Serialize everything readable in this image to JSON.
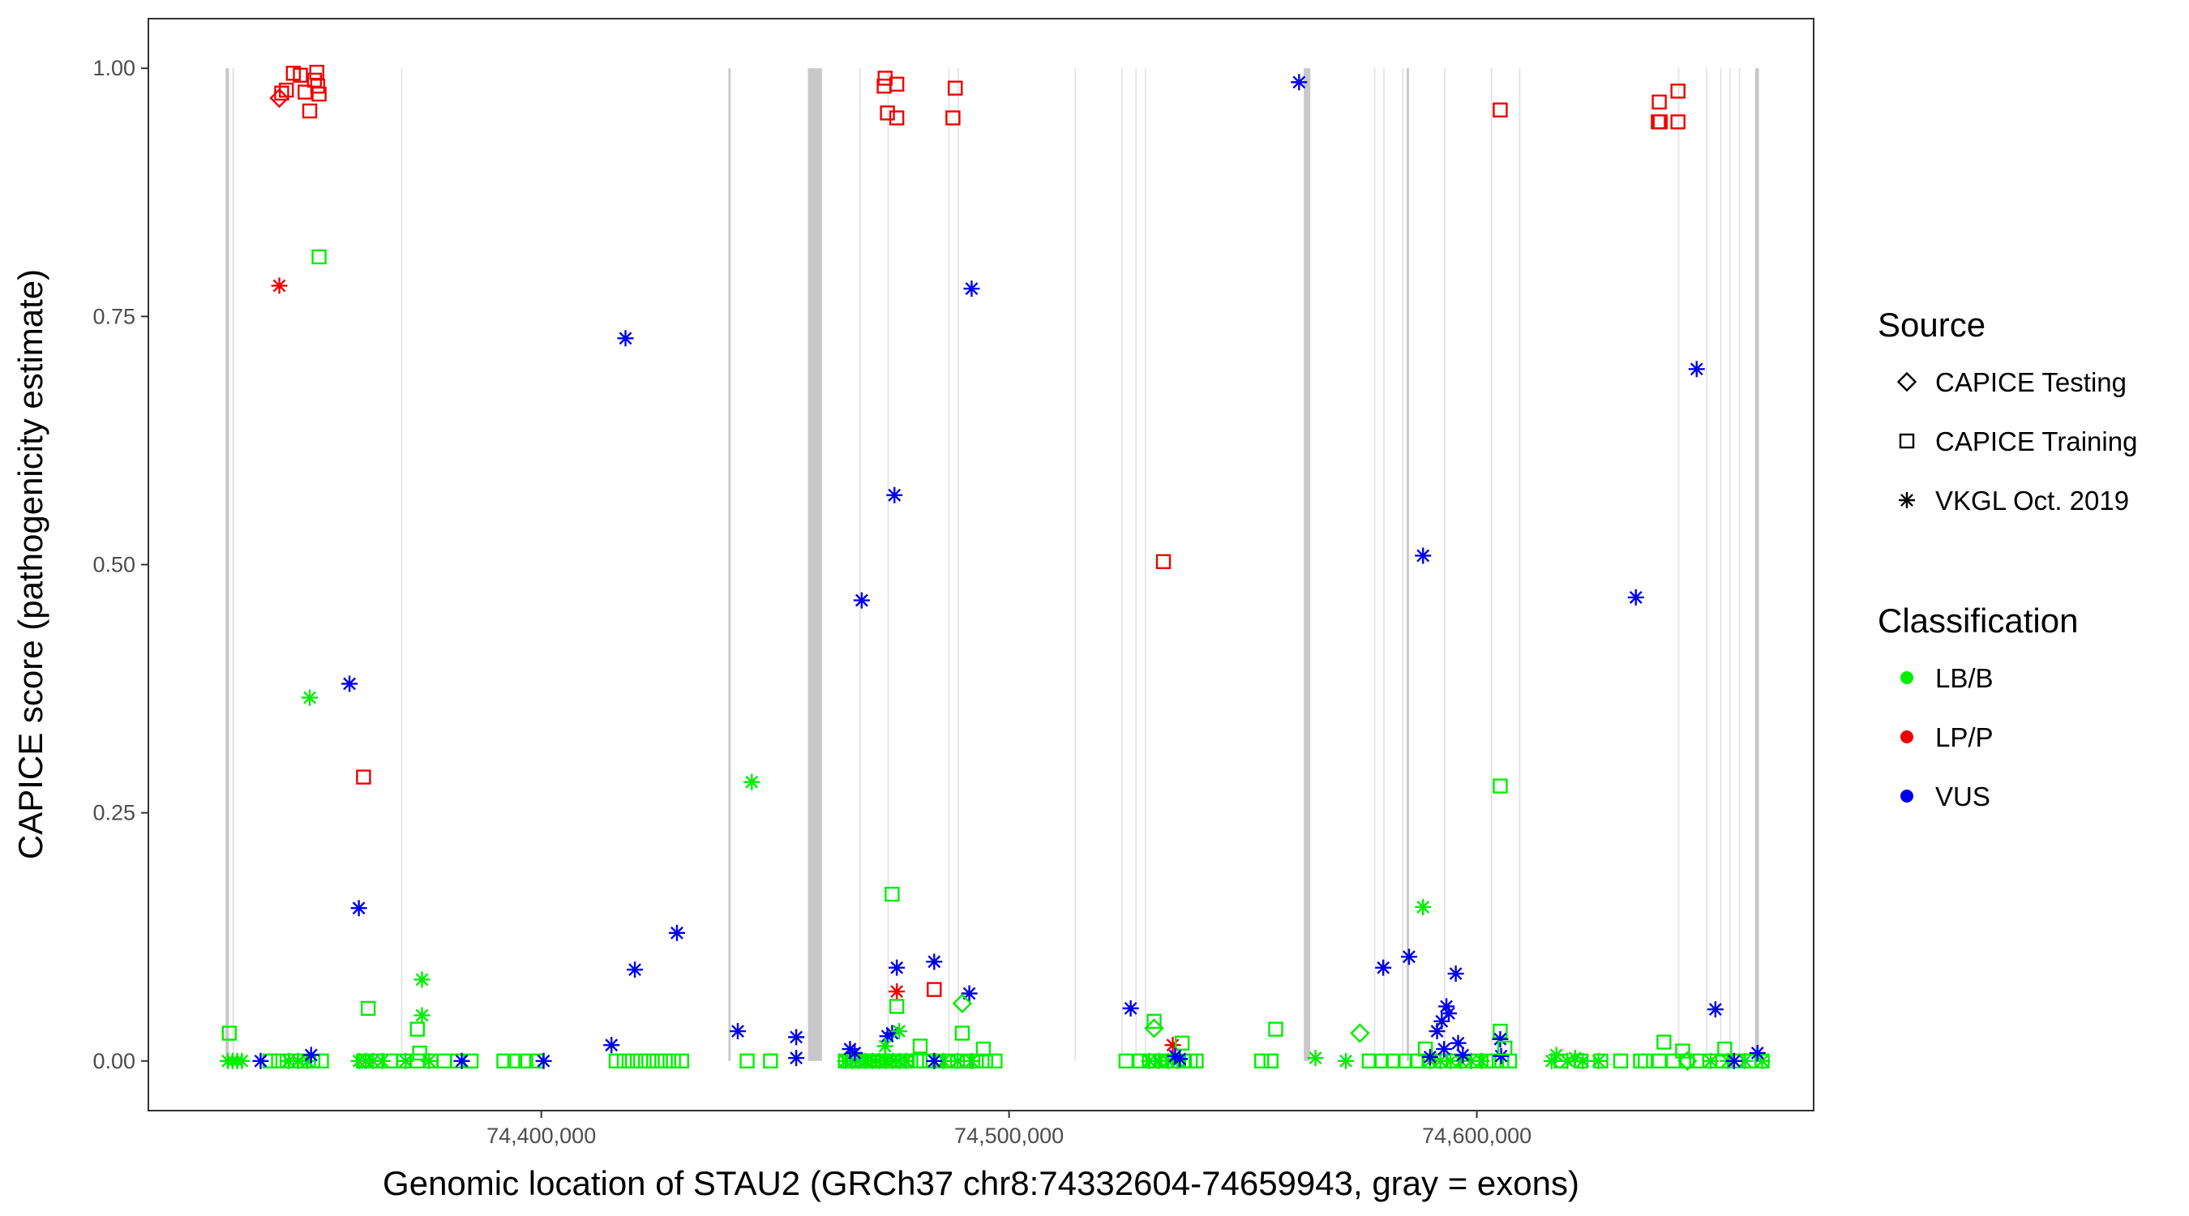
{
  "chart_data": {
    "type": "scatter",
    "xlabel": "Genomic location of STAU2 (GRCh37 chr8:74332604-74659943, gray = exons)",
    "ylabel": "CAPICE score (pathogenicity estimate)",
    "xlim": [
      74316000,
      74672000
    ],
    "ylim": [
      -0.05,
      1.05
    ],
    "x_ticks": [
      74400000,
      74500000,
      74600000
    ],
    "x_tick_labels": [
      "74,400,000",
      "74,500,000",
      "74,600,000"
    ],
    "y_ticks": [
      0,
      0.25,
      0.5,
      0.75,
      1.0
    ],
    "y_tick_labels": [
      "0.00",
      "0.25",
      "0.50",
      "0.75",
      "1.00"
    ],
    "grid": false,
    "legend_position": "right",
    "source_legend": {
      "title": "Source",
      "items": [
        {
          "label": "CAPICE Testing",
          "shape": "diamond"
        },
        {
          "label": "CAPICE Training",
          "shape": "square"
        },
        {
          "label": "VKGL Oct. 2019",
          "shape": "asterisk"
        }
      ]
    },
    "class_legend": {
      "title": "Classification",
      "items": [
        {
          "label": "LB/B",
          "color": "#00ee00"
        },
        {
          "label": "LP/P",
          "color": "#ee0000"
        },
        {
          "label": "VUS",
          "color": "#0000ee"
        }
      ]
    },
    "exons": [
      {
        "start": 74332500,
        "end": 74333200,
        "shade": "#c8c8c8"
      },
      {
        "start": 74334000,
        "end": 74334300,
        "shade": "#dddddd"
      },
      {
        "start": 74370000,
        "end": 74370300,
        "shade": "#e2e2e2"
      },
      {
        "start": 74440000,
        "end": 74440500,
        "shade": "#c8c8c8"
      },
      {
        "start": 74457000,
        "end": 74460000,
        "shade": "#c8c8c8"
      },
      {
        "start": 74468000,
        "end": 74468300,
        "shade": "#e2e2e2"
      },
      {
        "start": 74474000,
        "end": 74474300,
        "shade": "#e2e2e2"
      },
      {
        "start": 74487000,
        "end": 74487300,
        "shade": "#e2e2e2"
      },
      {
        "start": 74489000,
        "end": 74489300,
        "shade": "#e2e2e2"
      },
      {
        "start": 74514000,
        "end": 74514300,
        "shade": "#e2e2e2"
      },
      {
        "start": 74524000,
        "end": 74524300,
        "shade": "#e2e2e2"
      },
      {
        "start": 74527000,
        "end": 74527300,
        "shade": "#e2e2e2"
      },
      {
        "start": 74529000,
        "end": 74529300,
        "shade": "#e2e2e2"
      },
      {
        "start": 74563000,
        "end": 74564400,
        "shade": "#c8c8c8"
      },
      {
        "start": 74578000,
        "end": 74578300,
        "shade": "#e2e2e2"
      },
      {
        "start": 74580000,
        "end": 74580300,
        "shade": "#e2e2e2"
      },
      {
        "start": 74584000,
        "end": 74584300,
        "shade": "#e2e2e2"
      },
      {
        "start": 74585000,
        "end": 74585500,
        "shade": "#c8c8c8"
      },
      {
        "start": 74593000,
        "end": 74593300,
        "shade": "#e2e2e2"
      },
      {
        "start": 74603000,
        "end": 74603300,
        "shade": "#e2e2e2"
      },
      {
        "start": 74609000,
        "end": 74609300,
        "shade": "#e2e2e2"
      },
      {
        "start": 74643000,
        "end": 74643300,
        "shade": "#e2e2e2"
      },
      {
        "start": 74649000,
        "end": 74649300,
        "shade": "#e2e2e2"
      },
      {
        "start": 74652000,
        "end": 74652300,
        "shade": "#e2e2e2"
      },
      {
        "start": 74654000,
        "end": 74654300,
        "shade": "#e2e2e2"
      },
      {
        "start": 74656000,
        "end": 74656300,
        "shade": "#e2e2e2"
      },
      {
        "start": 74659500,
        "end": 74660300,
        "shade": "#c8c8c8"
      }
    ],
    "points": [
      {
        "x": 74344000,
        "y": 0.97,
        "shape": "diamond",
        "cls": "LP/P"
      },
      {
        "x": 74344500,
        "y": 0.975,
        "shape": "square",
        "cls": "LP/P"
      },
      {
        "x": 74345500,
        "y": 0.978,
        "shape": "square",
        "cls": "LP/P"
      },
      {
        "x": 74347000,
        "y": 0.995,
        "shape": "square",
        "cls": "LP/P"
      },
      {
        "x": 74348500,
        "y": 0.993,
        "shape": "square",
        "cls": "LP/P"
      },
      {
        "x": 74349500,
        "y": 0.976,
        "shape": "square",
        "cls": "LP/P"
      },
      {
        "x": 74350500,
        "y": 0.957,
        "shape": "square",
        "cls": "LP/P"
      },
      {
        "x": 74351500,
        "y": 0.988,
        "shape": "square",
        "cls": "LP/P"
      },
      {
        "x": 74352000,
        "y": 0.996,
        "shape": "square",
        "cls": "LP/P"
      },
      {
        "x": 74352200,
        "y": 0.982,
        "shape": "square",
        "cls": "LP/P"
      },
      {
        "x": 74352500,
        "y": 0.974,
        "shape": "square",
        "cls": "LP/P"
      },
      {
        "x": 74344000,
        "y": 0.781,
        "shape": "asterisk",
        "cls": "LP/P"
      },
      {
        "x": 74352500,
        "y": 0.81,
        "shape": "square",
        "cls": "LB/B"
      },
      {
        "x": 74350500,
        "y": 0.366,
        "shape": "asterisk",
        "cls": "LB/B"
      },
      {
        "x": 74359000,
        "y": 0.38,
        "shape": "asterisk",
        "cls": "VUS"
      },
      {
        "x": 74362000,
        "y": 0.286,
        "shape": "square",
        "cls": "LP/P"
      },
      {
        "x": 74361000,
        "y": 0.154,
        "shape": "asterisk",
        "cls": "VUS"
      },
      {
        "x": 74363000,
        "y": 0.053,
        "shape": "square",
        "cls": "LB/B"
      },
      {
        "x": 74374500,
        "y": 0.082,
        "shape": "asterisk",
        "cls": "LB/B"
      },
      {
        "x": 74374500,
        "y": 0.046,
        "shape": "asterisk",
        "cls": "LB/B"
      },
      {
        "x": 74373500,
        "y": 0.032,
        "shape": "square",
        "cls": "LB/B"
      },
      {
        "x": 74374000,
        "y": 0.008,
        "shape": "square",
        "cls": "LB/B"
      },
      {
        "x": 74418000,
        "y": 0.728,
        "shape": "asterisk",
        "cls": "VUS"
      },
      {
        "x": 74420000,
        "y": 0.092,
        "shape": "asterisk",
        "cls": "VUS"
      },
      {
        "x": 74429000,
        "y": 0.129,
        "shape": "asterisk",
        "cls": "VUS"
      },
      {
        "x": 74415000,
        "y": 0.016,
        "shape": "asterisk",
        "cls": "VUS"
      },
      {
        "x": 74442000,
        "y": 0.03,
        "shape": "asterisk",
        "cls": "VUS"
      },
      {
        "x": 74445000,
        "y": 0.281,
        "shape": "asterisk",
        "cls": "LB/B"
      },
      {
        "x": 74454500,
        "y": 0.024,
        "shape": "asterisk",
        "cls": "VUS"
      },
      {
        "x": 74454500,
        "y": 0.003,
        "shape": "asterisk",
        "cls": "VUS"
      },
      {
        "x": 74333300,
        "y": 0.028,
        "shape": "square",
        "cls": "LB/B"
      },
      {
        "x": 74340000,
        "y": 0.0,
        "shape": "asterisk",
        "cls": "VUS"
      },
      {
        "x": 74350800,
        "y": 0.006,
        "shape": "asterisk",
        "cls": "VUS"
      },
      {
        "x": 74383000,
        "y": 0.0,
        "shape": "asterisk",
        "cls": "VUS"
      },
      {
        "x": 74400500,
        "y": 0.0,
        "shape": "asterisk",
        "cls": "VUS"
      },
      {
        "x": 74468500,
        "y": 0.464,
        "shape": "asterisk",
        "cls": "VUS"
      },
      {
        "x": 74475500,
        "y": 0.57,
        "shape": "asterisk",
        "cls": "VUS"
      },
      {
        "x": 74492000,
        "y": 0.778,
        "shape": "asterisk",
        "cls": "VUS"
      },
      {
        "x": 74473500,
        "y": 0.99,
        "shape": "square",
        "cls": "LP/P"
      },
      {
        "x": 74473300,
        "y": 0.982,
        "shape": "square",
        "cls": "LP/P"
      },
      {
        "x": 74474000,
        "y": 0.955,
        "shape": "square",
        "cls": "LP/P"
      },
      {
        "x": 74476000,
        "y": 0.984,
        "shape": "square",
        "cls": "LP/P"
      },
      {
        "x": 74476000,
        "y": 0.95,
        "shape": "square",
        "cls": "LP/P"
      },
      {
        "x": 74488500,
        "y": 0.98,
        "shape": "square",
        "cls": "LP/P"
      },
      {
        "x": 74488000,
        "y": 0.95,
        "shape": "square",
        "cls": "LP/P"
      },
      {
        "x": 74475000,
        "y": 0.168,
        "shape": "square",
        "cls": "LB/B"
      },
      {
        "x": 74476000,
        "y": 0.094,
        "shape": "asterisk",
        "cls": "VUS"
      },
      {
        "x": 74484000,
        "y": 0.1,
        "shape": "asterisk",
        "cls": "VUS"
      },
      {
        "x": 74476000,
        "y": 0.07,
        "shape": "asterisk",
        "cls": "LP/P"
      },
      {
        "x": 74484000,
        "y": 0.072,
        "shape": "square",
        "cls": "LP/P"
      },
      {
        "x": 74491500,
        "y": 0.068,
        "shape": "asterisk",
        "cls": "VUS"
      },
      {
        "x": 74476000,
        "y": 0.055,
        "shape": "square",
        "cls": "LB/B"
      },
      {
        "x": 74490000,
        "y": 0.058,
        "shape": "diamond",
        "cls": "LB/B"
      },
      {
        "x": 74490000,
        "y": 0.028,
        "shape": "square",
        "cls": "LB/B"
      },
      {
        "x": 74475000,
        "y": 0.028,
        "shape": "asterisk",
        "cls": "VUS"
      },
      {
        "x": 74474000,
        "y": 0.025,
        "shape": "asterisk",
        "cls": "VUS"
      },
      {
        "x": 74476500,
        "y": 0.03,
        "shape": "asterisk",
        "cls": "LB/B"
      },
      {
        "x": 74473500,
        "y": 0.015,
        "shape": "asterisk",
        "cls": "LB/B"
      },
      {
        "x": 74466000,
        "y": 0.012,
        "shape": "asterisk",
        "cls": "VUS"
      },
      {
        "x": 74467000,
        "y": 0.008,
        "shape": "asterisk",
        "cls": "VUS"
      },
      {
        "x": 74481000,
        "y": 0.015,
        "shape": "square",
        "cls": "LB/B"
      },
      {
        "x": 74494500,
        "y": 0.012,
        "shape": "square",
        "cls": "LB/B"
      },
      {
        "x": 74484000,
        "y": 0.0,
        "shape": "asterisk",
        "cls": "VUS"
      },
      {
        "x": 74526000,
        "y": 0.053,
        "shape": "asterisk",
        "cls": "VUS"
      },
      {
        "x": 74531000,
        "y": 0.04,
        "shape": "square",
        "cls": "LB/B"
      },
      {
        "x": 74531000,
        "y": 0.033,
        "shape": "diamond",
        "cls": "LB/B"
      },
      {
        "x": 74533000,
        "y": 0.503,
        "shape": "square",
        "cls": "LP/P"
      },
      {
        "x": 74535000,
        "y": 0.016,
        "shape": "asterisk",
        "cls": "LP/P"
      },
      {
        "x": 74537000,
        "y": 0.018,
        "shape": "square",
        "cls": "LB/B"
      },
      {
        "x": 74535500,
        "y": 0.005,
        "shape": "asterisk",
        "cls": "VUS"
      },
      {
        "x": 74536500,
        "y": 0.002,
        "shape": "asterisk",
        "cls": "VUS"
      },
      {
        "x": 74557000,
        "y": 0.032,
        "shape": "square",
        "cls": "LB/B"
      },
      {
        "x": 74562000,
        "y": 0.986,
        "shape": "asterisk",
        "cls": "VUS"
      },
      {
        "x": 74565500,
        "y": 0.003,
        "shape": "asterisk",
        "cls": "LB/B"
      },
      {
        "x": 74575000,
        "y": 0.028,
        "shape": "diamond",
        "cls": "LB/B"
      },
      {
        "x": 74572000,
        "y": 0.0,
        "shape": "asterisk",
        "cls": "LB/B"
      },
      {
        "x": 74580000,
        "y": 0.094,
        "shape": "asterisk",
        "cls": "VUS"
      },
      {
        "x": 74585500,
        "y": 0.105,
        "shape": "asterisk",
        "cls": "VUS"
      },
      {
        "x": 74588500,
        "y": 0.509,
        "shape": "asterisk",
        "cls": "VUS"
      },
      {
        "x": 74588500,
        "y": 0.155,
        "shape": "asterisk",
        "cls": "LB/B"
      },
      {
        "x": 74595500,
        "y": 0.088,
        "shape": "asterisk",
        "cls": "VUS"
      },
      {
        "x": 74593500,
        "y": 0.055,
        "shape": "asterisk",
        "cls": "VUS"
      },
      {
        "x": 74594000,
        "y": 0.048,
        "shape": "asterisk",
        "cls": "VUS"
      },
      {
        "x": 74592500,
        "y": 0.04,
        "shape": "asterisk",
        "cls": "VUS"
      },
      {
        "x": 74591500,
        "y": 0.03,
        "shape": "asterisk",
        "cls": "VUS"
      },
      {
        "x": 74596000,
        "y": 0.018,
        "shape": "asterisk",
        "cls": "VUS"
      },
      {
        "x": 74593000,
        "y": 0.012,
        "shape": "asterisk",
        "cls": "VUS"
      },
      {
        "x": 74589000,
        "y": 0.012,
        "shape": "square",
        "cls": "LB/B"
      },
      {
        "x": 74590000,
        "y": 0.004,
        "shape": "asterisk",
        "cls": "VUS"
      },
      {
        "x": 74597000,
        "y": 0.006,
        "shape": "asterisk",
        "cls": "VUS"
      },
      {
        "x": 74605000,
        "y": 0.958,
        "shape": "square",
        "cls": "LP/P"
      },
      {
        "x": 74605000,
        "y": 0.277,
        "shape": "square",
        "cls": "LB/B"
      },
      {
        "x": 74605000,
        "y": 0.03,
        "shape": "square",
        "cls": "LB/B"
      },
      {
        "x": 74605000,
        "y": 0.022,
        "shape": "asterisk",
        "cls": "VUS"
      },
      {
        "x": 74605200,
        "y": 0.005,
        "shape": "asterisk",
        "cls": "VUS"
      },
      {
        "x": 74606000,
        "y": 0.013,
        "shape": "square",
        "cls": "LB/B"
      },
      {
        "x": 74617000,
        "y": 0.006,
        "shape": "asterisk",
        "cls": "LB/B"
      },
      {
        "x": 74621000,
        "y": 0.003,
        "shape": "asterisk",
        "cls": "LB/B"
      },
      {
        "x": 74634000,
        "y": 0.467,
        "shape": "asterisk",
        "cls": "VUS"
      },
      {
        "x": 74639000,
        "y": 0.966,
        "shape": "square",
        "cls": "LP/P"
      },
      {
        "x": 74638800,
        "y": 0.946,
        "shape": "square",
        "cls": "LP/P"
      },
      {
        "x": 74639200,
        "y": 0.946,
        "shape": "square",
        "cls": "LP/P"
      },
      {
        "x": 74643000,
        "y": 0.977,
        "shape": "square",
        "cls": "LP/P"
      },
      {
        "x": 74643000,
        "y": 0.946,
        "shape": "square",
        "cls": "LP/P"
      },
      {
        "x": 74647000,
        "y": 0.697,
        "shape": "asterisk",
        "cls": "VUS"
      },
      {
        "x": 74640000,
        "y": 0.019,
        "shape": "square",
        "cls": "LB/B"
      },
      {
        "x": 74644000,
        "y": 0.01,
        "shape": "square",
        "cls": "LB/B"
      },
      {
        "x": 74645000,
        "y": 0.0,
        "shape": "diamond",
        "cls": "LB/B"
      },
      {
        "x": 74651000,
        "y": 0.052,
        "shape": "asterisk",
        "cls": "VUS"
      },
      {
        "x": 74653000,
        "y": 0.012,
        "shape": "square",
        "cls": "LB/B"
      },
      {
        "x": 74655000,
        "y": 0.0,
        "shape": "asterisk",
        "cls": "VUS"
      },
      {
        "x": 74660000,
        "y": 0.008,
        "shape": "asterisk",
        "cls": "VUS"
      }
    ],
    "baseline_groups": [
      {
        "x_start": 74333000,
        "x_end": 74336000,
        "shape": "asterisk",
        "cls": "LB/B",
        "count": 4
      },
      {
        "x_start": 74342000,
        "x_end": 74353000,
        "shape": "square",
        "cls": "LB/B",
        "count": 7
      },
      {
        "x_start": 74346000,
        "x_end": 74350000,
        "shape": "asterisk",
        "cls": "LB/B",
        "count": 3
      },
      {
        "x_start": 74361000,
        "x_end": 74364000,
        "shape": "asterisk",
        "cls": "LB/B",
        "count": 3
      },
      {
        "x_start": 74362000,
        "x_end": 74385000,
        "shape": "square",
        "cls": "LB/B",
        "count": 9
      },
      {
        "x_start": 74366000,
        "x_end": 74376000,
        "shape": "asterisk",
        "cls": "LB/B",
        "count": 3
      },
      {
        "x_start": 74392000,
        "x_end": 74399000,
        "shape": "square",
        "cls": "LB/B",
        "count": 4
      },
      {
        "x_start": 74416000,
        "x_end": 74430000,
        "shape": "square",
        "cls": "LB/B",
        "count": 9
      },
      {
        "x_start": 74444000,
        "x_end": 74449000,
        "shape": "square",
        "cls": "LB/B",
        "count": 2
      },
      {
        "x_start": 74465000,
        "x_end": 74478000,
        "shape": "square",
        "cls": "LB/B",
        "count": 16
      },
      {
        "x_start": 74465000,
        "x_end": 74478000,
        "shape": "asterisk",
        "cls": "LB/B",
        "count": 10
      },
      {
        "x_start": 74479000,
        "x_end": 74497000,
        "shape": "square",
        "cls": "LB/B",
        "count": 10
      },
      {
        "x_start": 74486000,
        "x_end": 74492000,
        "shape": "asterisk",
        "cls": "LB/B",
        "count": 3
      },
      {
        "x_start": 74525000,
        "x_end": 74528000,
        "shape": "square",
        "cls": "LB/B",
        "count": 2
      },
      {
        "x_start": 74530000,
        "x_end": 74540000,
        "shape": "square",
        "cls": "LB/B",
        "count": 9
      },
      {
        "x_start": 74530000,
        "x_end": 74536000,
        "shape": "asterisk",
        "cls": "LB/B",
        "count": 4
      },
      {
        "x_start": 74554000,
        "x_end": 74556000,
        "shape": "square",
        "cls": "LB/B",
        "count": 2
      },
      {
        "x_start": 74577000,
        "x_end": 74600000,
        "shape": "square",
        "cls": "LB/B",
        "count": 10
      },
      {
        "x_start": 74590000,
        "x_end": 74601000,
        "shape": "asterisk",
        "cls": "LB/B",
        "count": 6
      },
      {
        "x_start": 74602000,
        "x_end": 74607000,
        "shape": "square",
        "cls": "LB/B",
        "count": 4
      },
      {
        "x_start": 74616000,
        "x_end": 74626000,
        "shape": "asterisk",
        "cls": "LB/B",
        "count": 4
      },
      {
        "x_start": 74618000,
        "x_end": 74635000,
        "shape": "square",
        "cls": "LB/B",
        "count": 5
      },
      {
        "x_start": 74636000,
        "x_end": 74645000,
        "shape": "square",
        "cls": "LB/B",
        "count": 4
      },
      {
        "x_start": 74647000,
        "x_end": 74661000,
        "shape": "square",
        "cls": "LB/B",
        "count": 6
      },
      {
        "x_start": 74650000,
        "x_end": 74661000,
        "shape": "asterisk",
        "cls": "LB/B",
        "count": 4
      }
    ]
  }
}
